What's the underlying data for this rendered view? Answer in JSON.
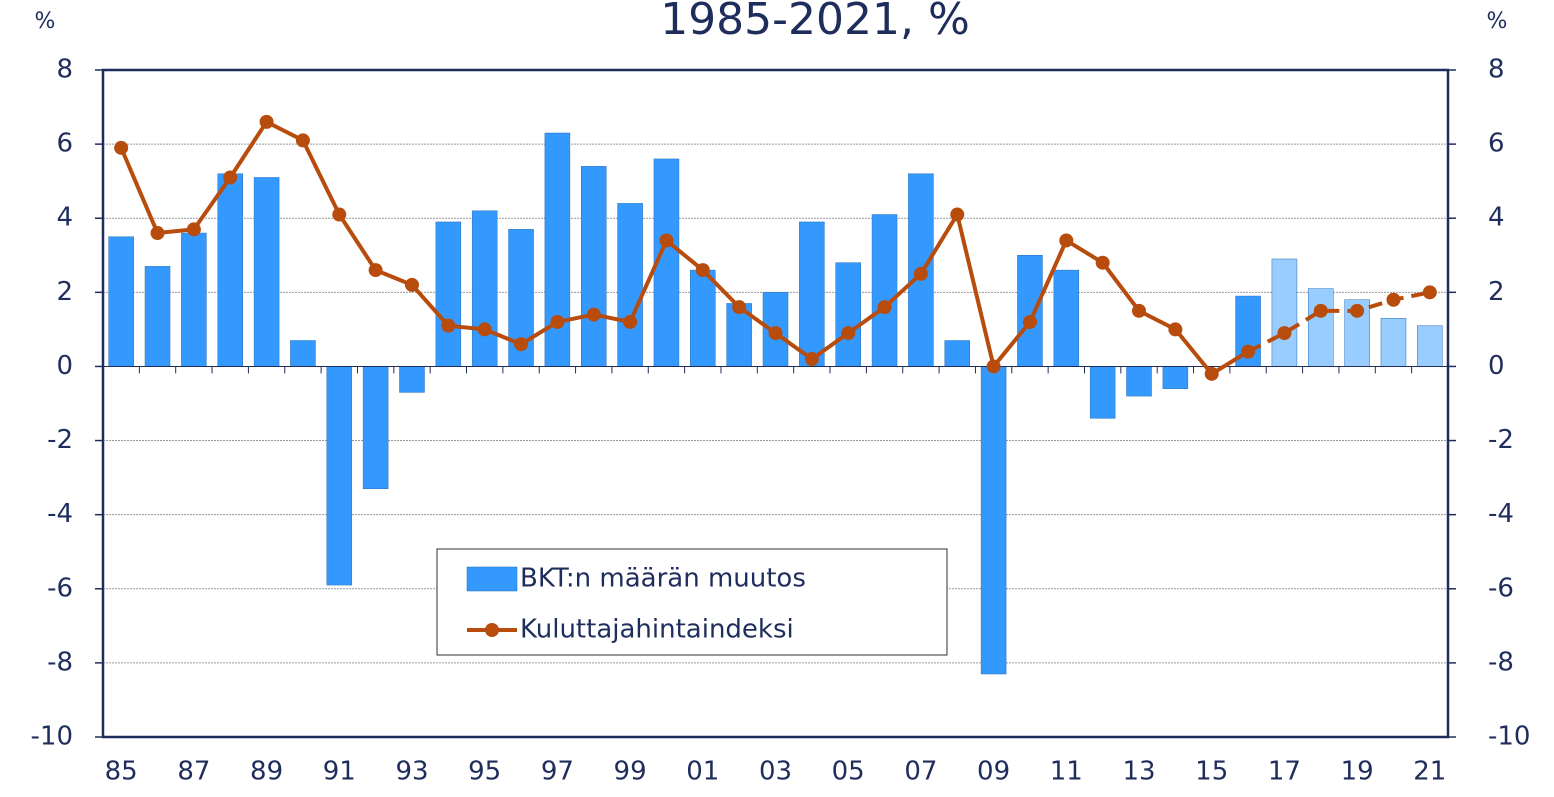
{
  "chart_data": {
    "type": "bar-line",
    "title": "1985-2021, %",
    "y_label": "%",
    "y2_label": "%",
    "categories": [
      "85",
      null,
      "87",
      null,
      "89",
      null,
      "91",
      null,
      "93",
      null,
      "95",
      null,
      "97",
      null,
      "99",
      null,
      "01",
      null,
      "03",
      null,
      "05",
      null,
      "07",
      null,
      "09",
      null,
      "11",
      null,
      "13",
      null,
      "15",
      null,
      "17",
      null,
      "19",
      null,
      "21"
    ],
    "series": [
      {
        "name": "BKT:n määrän muutos",
        "type": "bar",
        "color": "#3399ff",
        "colors": [
          "#3399ff",
          "#3399ff",
          "#3399ff",
          "#3399ff",
          "#3399ff",
          "#3399ff",
          "#3399ff",
          "#3399ff",
          "#3399ff",
          "#3399ff",
          "#3399ff",
          "#3399ff",
          "#3399ff",
          "#3399ff",
          "#3399ff",
          "#3399ff",
          "#3399ff",
          "#3399ff",
          "#3399ff",
          "#3399ff",
          "#3399ff",
          "#3399ff",
          "#3399ff",
          "#3399ff",
          "#3399ff",
          "#3399ff",
          "#3399ff",
          "#3399ff",
          "#3399ff",
          "#3399ff",
          "#3399ff",
          "#3399ff",
          "#99ccff",
          "#99ccff",
          "#99ccff",
          "#99ccff",
          "#99ccff"
        ],
        "values": [
          3.5,
          2.7,
          3.6,
          5.2,
          5.1,
          0.7,
          -5.9,
          -3.3,
          -0.7,
          3.9,
          4.2,
          3.7,
          6.3,
          5.4,
          4.4,
          5.6,
          2.6,
          1.7,
          2.0,
          3.9,
          2.8,
          4.1,
          5.2,
          0.7,
          -8.3,
          3.0,
          2.6,
          -1.4,
          -0.8,
          -0.6,
          0,
          1.9,
          2.9,
          2.1,
          1.8,
          1.3,
          1.1
        ]
      },
      {
        "name": "Kuluttajahintaindeksi",
        "type": "line",
        "axis": "y2",
        "color": "#b84c0c",
        "dashed_from_index": 31,
        "values": [
          5.9,
          3.6,
          3.7,
          5.1,
          6.6,
          6.1,
          4.1,
          2.6,
          2.2,
          1.1,
          1.0,
          0.6,
          1.2,
          1.4,
          1.2,
          3.4,
          2.6,
          1.6,
          0.9,
          0.2,
          0.9,
          1.6,
          2.5,
          4.1,
          0.0,
          1.2,
          3.4,
          2.8,
          1.5,
          1.0,
          -0.2,
          0.4,
          0.9,
          1.5,
          1.5,
          1.8,
          2.0
        ]
      }
    ],
    "ylim": [
      -10,
      8
    ],
    "yticks": [
      -10,
      -8,
      -6,
      -4,
      -2,
      0,
      2,
      4,
      6,
      8
    ],
    "y2lim": [
      -10,
      8
    ],
    "y2ticks": [
      -10,
      -8,
      -6,
      -4,
      -2,
      0,
      2,
      4,
      6,
      8
    ],
    "grid": true
  }
}
